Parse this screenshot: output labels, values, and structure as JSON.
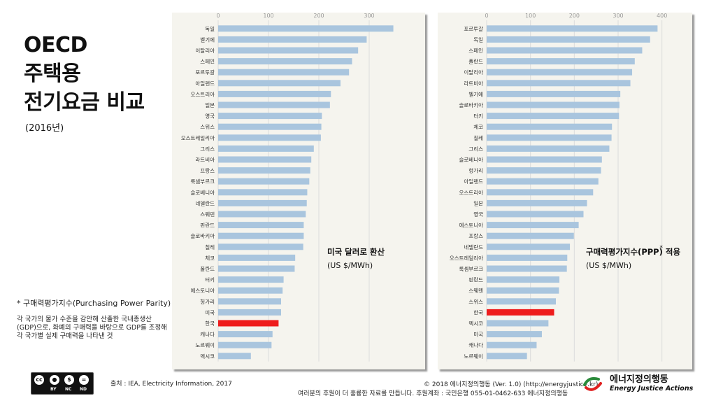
{
  "title_lines": [
    "OECD",
    "주택용",
    "전기요금 비교"
  ],
  "year": "(2016년)",
  "colors": {
    "bar": "#a9c5de",
    "highlight": "#ee1c1c",
    "panel_bg": "#f5f4ee",
    "grid": "#dcdcdc"
  },
  "chart_data": [
    {
      "type": "bar",
      "orientation": "horizontal",
      "title": "미국 달러로 환산",
      "subtitle": "(US $/MWh)",
      "unit": "US $/MWh",
      "xlim": [
        0,
        400
      ],
      "ticks": [
        0,
        100,
        200,
        300
      ],
      "highlight": "한국",
      "categories": [
        "독일",
        "벨기에",
        "이탈리아",
        "스페인",
        "포르투갈",
        "아일랜드",
        "오스트리아",
        "일본",
        "영국",
        "스위스",
        "오스트레일리아",
        "그리스",
        "라트비아",
        "프랑스",
        "룩셈부르크",
        "슬로베니아",
        "네델란드",
        "스웨덴",
        "핀란드",
        "슬로바키아",
        "칠레",
        "체코",
        "폴란드",
        "터키",
        "에스토니아",
        "헝가리",
        "미국",
        "한국",
        "캐나다",
        "노르웨이",
        "멕시코"
      ],
      "values": [
        348,
        295,
        278,
        266,
        260,
        243,
        224,
        222,
        206,
        205,
        204,
        190,
        185,
        183,
        181,
        177,
        176,
        174,
        170,
        170,
        169,
        153,
        152,
        130,
        128,
        125,
        125,
        120,
        108,
        106,
        65
      ]
    },
    {
      "type": "bar",
      "orientation": "horizontal",
      "title": "구매력평가지수(PPP) 적용",
      "title_mark": "*",
      "subtitle": "(US $/MWh)",
      "unit": "US $/MWh",
      "xlim": [
        0,
        450
      ],
      "ticks": [
        0,
        100,
        200,
        300,
        400
      ],
      "highlight": "한국",
      "categories": [
        "포르투갈",
        "독일",
        "스페인",
        "폴란드",
        "이탈리아",
        "라트비아",
        "벨기에",
        "슬로바키아",
        "터키",
        "체코",
        "칠레",
        "그리스",
        "슬로베니아",
        "헝가리",
        "아일랜드",
        "오스트리아",
        "일본",
        "영국",
        "에스토니아",
        "프랑스",
        "네델란드",
        "오스트레일리아",
        "룩셈부르크",
        "핀란드",
        "스웨덴",
        "스위스",
        "한국",
        "멕시코",
        "미국",
        "캐나다",
        "노르웨이"
      ],
      "values": [
        390,
        373,
        355,
        338,
        332,
        328,
        305,
        303,
        302,
        286,
        285,
        280,
        263,
        261,
        255,
        243,
        229,
        221,
        210,
        199,
        190,
        184,
        183,
        166,
        165,
        158,
        154,
        141,
        126,
        114,
        92
      ]
    }
  ],
  "footnote": {
    "title": "* 구매력평가지수(Purchasing Power Parity)",
    "lines": [
      "각 국가의 물가 수준을 감안해 산출한 국내총생산",
      "(GDP)으로, 화폐의 구매력을 바탕으로 GDP를 조정해",
      "각 국가별 실제 구매력을 나타낸 것"
    ]
  },
  "license": {
    "cc": "cc",
    "items": [
      "BY",
      "NC",
      "ND"
    ]
  },
  "source": "출처 : IEA, Electricity Information, 2017",
  "copyright": "© 2018 에너지정의행동 (Ver. 1.0) (http://energyjustice.kr)",
  "donate": "여러분의 후원이 더 훌륭한 자료를 만듭니다. 후원계좌 : 국민은행 055-01-0462-633 에너지정의행동",
  "logo": {
    "korean": "에너지정의행동",
    "english": "Energy Justice Actions",
    "icon": "logo-swirl-icon"
  }
}
